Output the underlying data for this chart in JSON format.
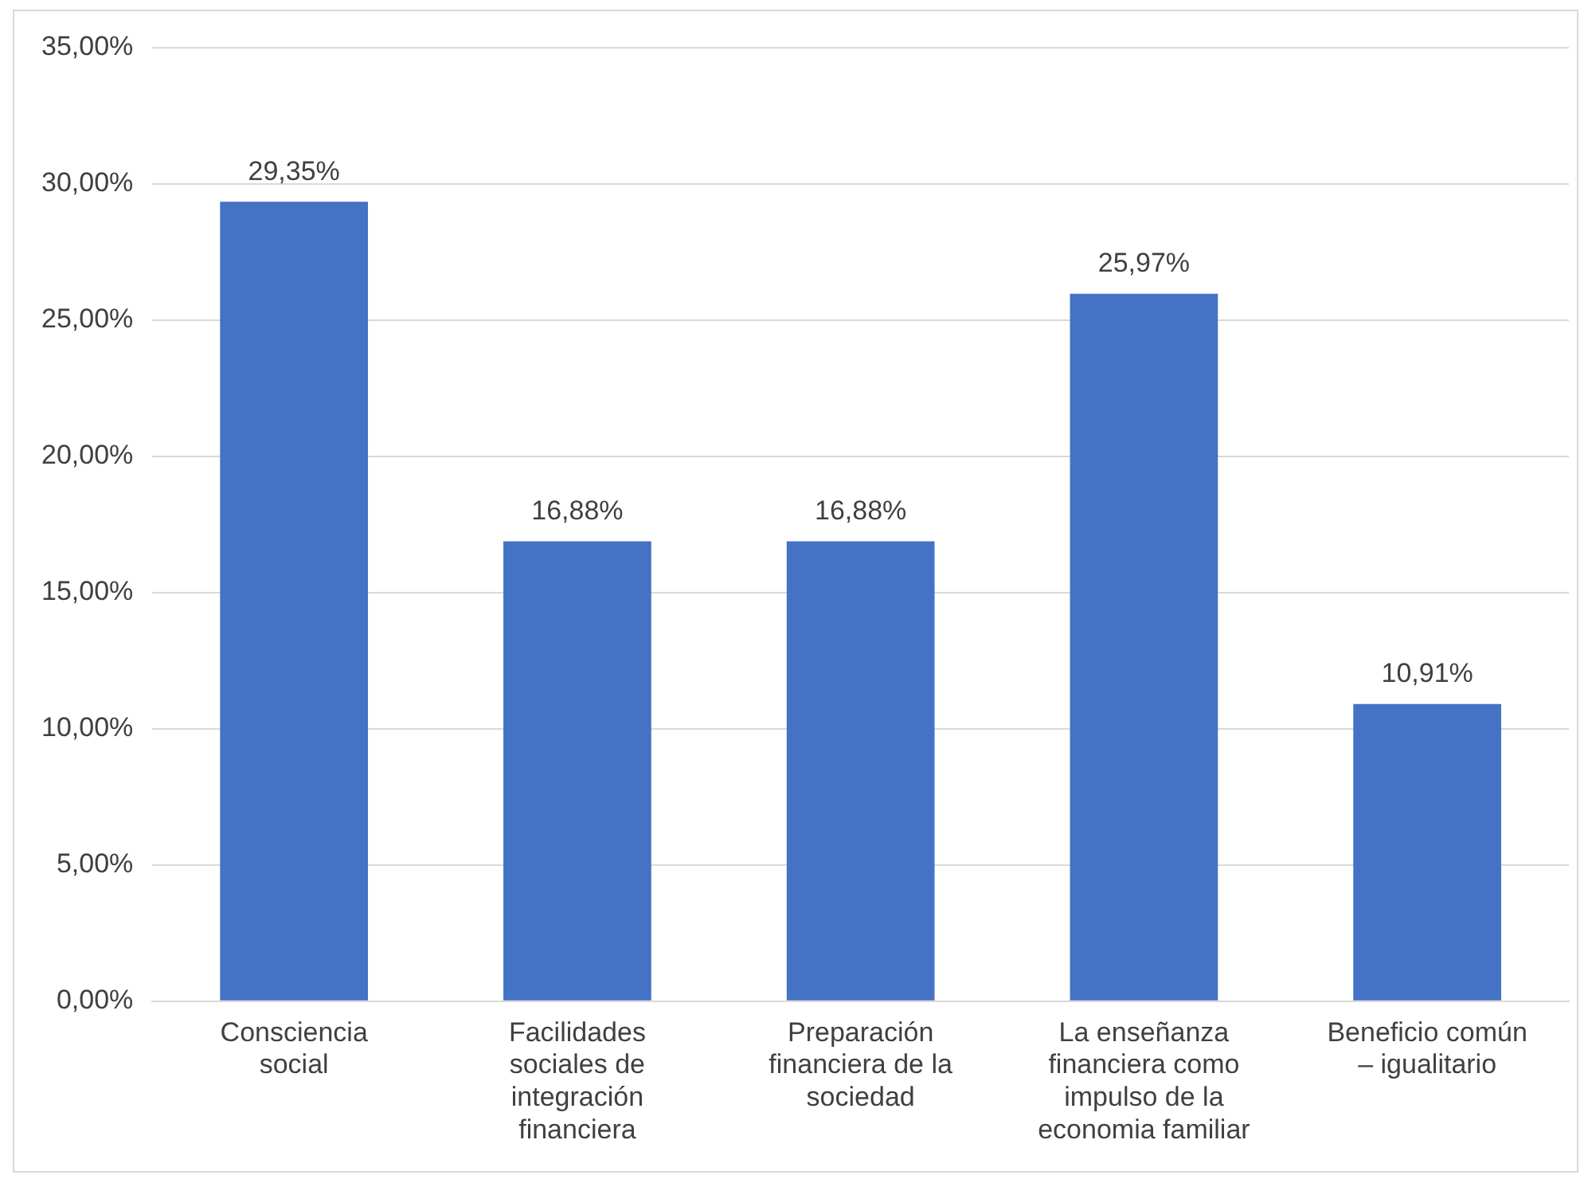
{
  "chart_data": {
    "type": "bar",
    "categories": [
      "Consciencia social",
      "Facilidades sociales de integración financiera",
      "Preparación financiera de la sociedad",
      "La enseñanza financiera como impulso de la economia familiar",
      "Beneficio común – igualitario"
    ],
    "values": [
      29.35,
      16.88,
      16.88,
      25.97,
      10.91
    ],
    "value_labels": [
      "29,35%",
      "16,88%",
      "16,88%",
      "25,97%",
      "10,91%"
    ],
    "color": "#4472c4",
    "ylim": [
      0,
      35
    ],
    "yticks": [
      {
        "value": 0,
        "label": "0,00%"
      },
      {
        "value": 5,
        "label": "5,00%"
      },
      {
        "value": 10,
        "label": "10,00%"
      },
      {
        "value": 15,
        "label": "15,00%"
      },
      {
        "value": 20,
        "label": "20,00%"
      },
      {
        "value": 25,
        "label": "25,00%"
      },
      {
        "value": 30,
        "label": "30,00%"
      },
      {
        "value": 35,
        "label": "35,00%"
      }
    ],
    "grid": "y",
    "legend": false
  }
}
